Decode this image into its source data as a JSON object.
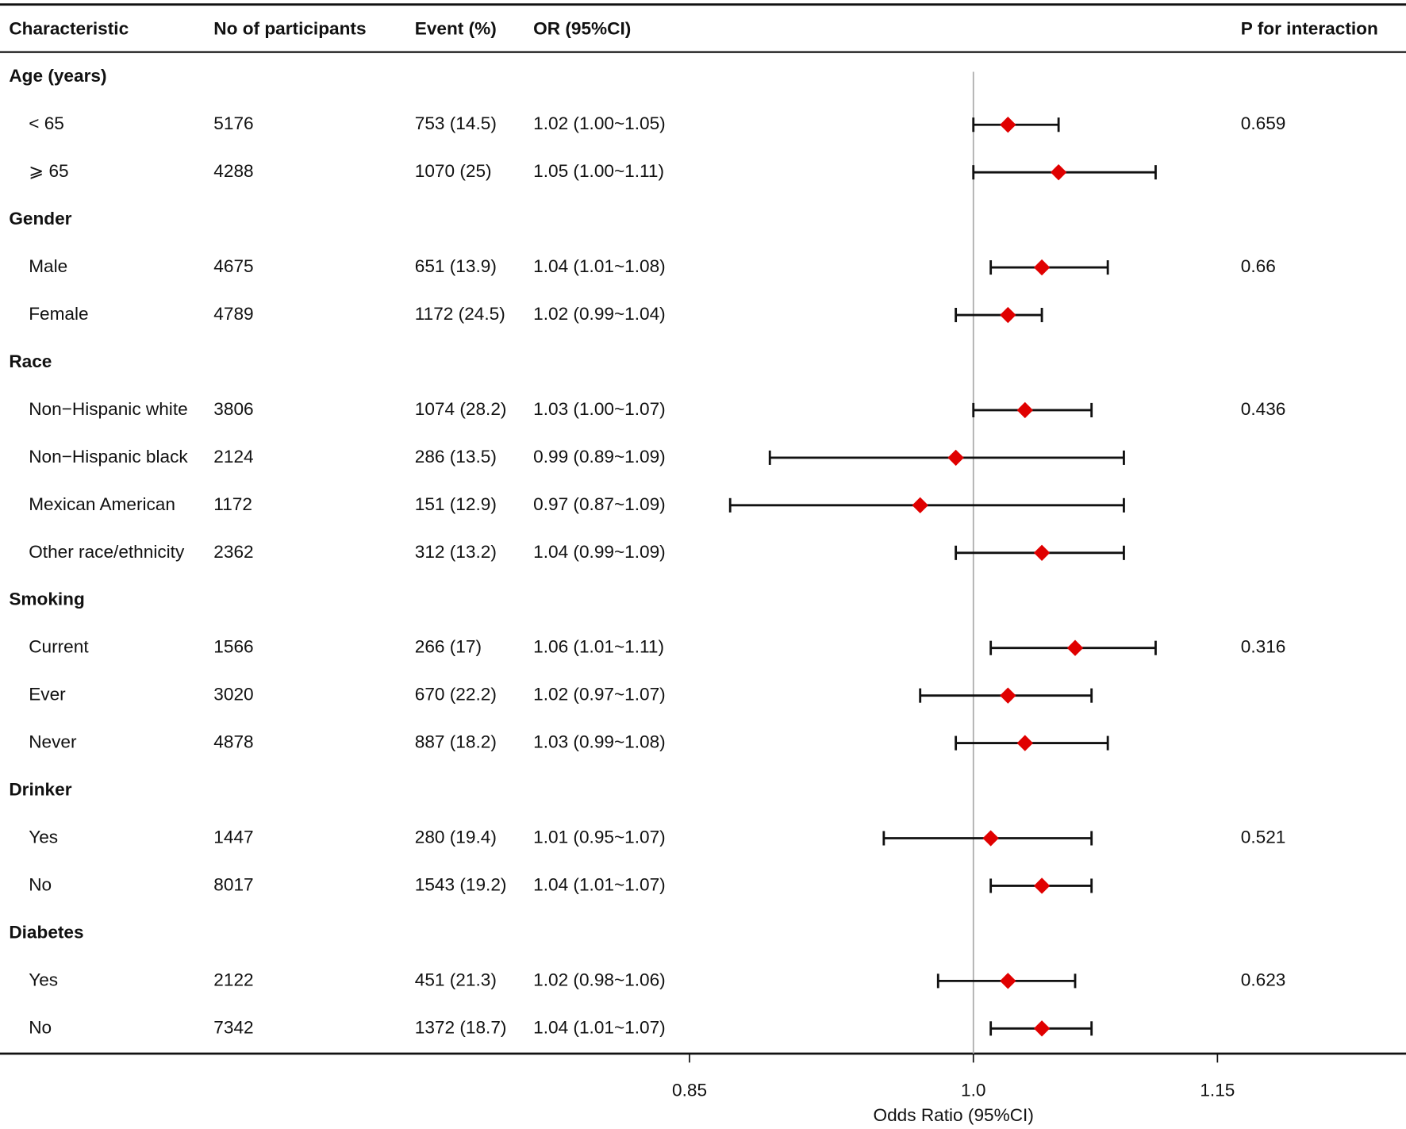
{
  "chart_data": {
    "type": "forest",
    "columns": [
      "Characteristic",
      "No of participants",
      "Event (%)",
      "OR (95%CI)",
      "P for interaction"
    ],
    "groups": [
      {
        "label": "Age (years)",
        "rows": [
          {
            "label": "< 65",
            "n": 5176,
            "event": "753 (14.5)",
            "or_text": "1.02 (1.00~1.05)",
            "or": 1.02,
            "lo": 1.0,
            "hi": 1.05,
            "p": 0.659
          },
          {
            "label": "⩾ 65",
            "n": 4288,
            "event": "1070 (25)",
            "or_text": "1.05 (1.00~1.11)",
            "or": 1.05,
            "lo": 1.0,
            "hi": 1.11,
            "p": null
          }
        ]
      },
      {
        "label": "Gender",
        "rows": [
          {
            "label": "Male",
            "n": 4675,
            "event": "651 (13.9)",
            "or_text": "1.04 (1.01~1.08)",
            "or": 1.04,
            "lo": 1.01,
            "hi": 1.08,
            "p": 0.66
          },
          {
            "label": "Female",
            "n": 4789,
            "event": "1172 (24.5)",
            "or_text": "1.02 (0.99~1.04)",
            "or": 1.02,
            "lo": 0.99,
            "hi": 1.04,
            "p": null
          }
        ]
      },
      {
        "label": "Race",
        "rows": [
          {
            "label": "Non−Hispanic white",
            "n": 3806,
            "event": "1074 (28.2)",
            "or_text": "1.03 (1.00~1.07)",
            "or": 1.03,
            "lo": 1.0,
            "hi": 1.07,
            "p": 0.436
          },
          {
            "label": "Non−Hispanic black",
            "n": 2124,
            "event": "286 (13.5)",
            "or_text": "0.99 (0.89~1.09)",
            "or": 0.99,
            "lo": 0.89,
            "hi": 1.09,
            "p": null
          },
          {
            "label": "Mexican American",
            "n": 1172,
            "event": "151 (12.9)",
            "or_text": "0.97 (0.87~1.09)",
            "or": 0.97,
            "lo": 0.87,
            "hi": 1.09,
            "p": null
          },
          {
            "label": "Other race/ethnicity",
            "n": 2362,
            "event": "312 (13.2)",
            "or_text": "1.04 (0.99~1.09)",
            "or": 1.04,
            "lo": 0.99,
            "hi": 1.09,
            "p": null
          }
        ]
      },
      {
        "label": "Smoking",
        "rows": [
          {
            "label": "Current",
            "n": 1566,
            "event": "266 (17)",
            "or_text": "1.06 (1.01~1.11)",
            "or": 1.06,
            "lo": 1.01,
            "hi": 1.11,
            "p": 0.316
          },
          {
            "label": "Ever",
            "n": 3020,
            "event": "670 (22.2)",
            "or_text": "1.02 (0.97~1.07)",
            "or": 1.02,
            "lo": 0.97,
            "hi": 1.07,
            "p": null
          },
          {
            "label": "Never",
            "n": 4878,
            "event": "887 (18.2)",
            "or_text": "1.03 (0.99~1.08)",
            "or": 1.03,
            "lo": 0.99,
            "hi": 1.08,
            "p": null
          }
        ]
      },
      {
        "label": "Drinker",
        "rows": [
          {
            "label": "Yes",
            "n": 1447,
            "event": "280 (19.4)",
            "or_text": "1.01 (0.95~1.07)",
            "or": 1.01,
            "lo": 0.95,
            "hi": 1.07,
            "p": 0.521
          },
          {
            "label": "No",
            "n": 8017,
            "event": "1543 (19.2)",
            "or_text": "1.04 (1.01~1.07)",
            "or": 1.04,
            "lo": 1.01,
            "hi": 1.07,
            "p": null
          }
        ]
      },
      {
        "label": "Diabetes",
        "rows": [
          {
            "label": "Yes",
            "n": 2122,
            "event": "451 (21.3)",
            "or_text": "1.02 (0.98~1.06)",
            "or": 1.02,
            "lo": 0.98,
            "hi": 1.06,
            "p": 0.623
          },
          {
            "label": "No",
            "n": 7342,
            "event": "1372 (18.7)",
            "or_text": "1.04 (1.01~1.07)",
            "or": 1.04,
            "lo": 1.01,
            "hi": 1.07,
            "p": null
          }
        ]
      }
    ],
    "xlabel": "Odds Ratio (95%CI)",
    "xlim": [
      0.85,
      1.15
    ],
    "xticks": [
      0.85,
      {
        "value": 1,
        "label": "1.0"
      },
      1.15
    ],
    "log_scale": true,
    "reference_line": 1,
    "marker_color": "#e00000"
  }
}
